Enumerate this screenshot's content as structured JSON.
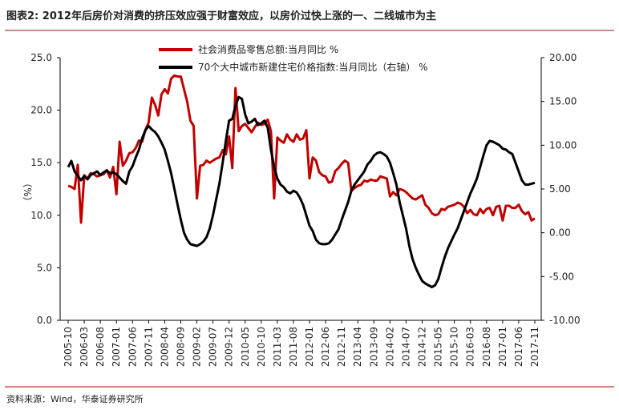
{
  "chart_data": {
    "type": "line",
    "title": "图表2: 2012年后房价对消费的挤压效应强于财富效应，以房价过快上涨的一、二线城市为主",
    "source": "资料来源：Wind，华泰证券研究所",
    "y_label": "（%）",
    "categories": [
      "2005-10",
      null,
      null,
      null,
      null,
      "2006-03",
      null,
      null,
      null,
      null,
      "2006-08",
      null,
      null,
      null,
      null,
      "2007-01",
      null,
      null,
      null,
      null,
      "2007-06",
      null,
      null,
      null,
      null,
      "2007-11",
      null,
      null,
      null,
      null,
      "2008-04",
      null,
      null,
      null,
      null,
      "2008-09",
      null,
      null,
      null,
      null,
      "2009-02",
      null,
      null,
      null,
      null,
      "2009-07",
      null,
      null,
      null,
      null,
      "2009-12",
      null,
      null,
      null,
      null,
      "2010-05",
      null,
      null,
      null,
      null,
      "2010-10",
      null,
      null,
      null,
      null,
      "2011-03",
      null,
      null,
      null,
      null,
      "2011-08",
      null,
      null,
      null,
      null,
      "2012-01",
      null,
      null,
      null,
      null,
      "2012-06",
      null,
      null,
      null,
      null,
      "2012-11",
      null,
      null,
      null,
      null,
      "2013-04",
      null,
      null,
      null,
      null,
      "2013-09",
      null,
      null,
      null,
      null,
      "2014-02",
      null,
      null,
      null,
      null,
      "2014-07",
      null,
      null,
      null,
      null,
      "2014-12",
      null,
      null,
      null,
      null,
      "2015-05",
      null,
      null,
      null,
      null,
      "2015-10",
      null,
      null,
      null,
      null,
      "2016-03",
      null,
      null,
      null,
      null,
      "2016-08",
      null,
      null,
      null,
      null,
      "2017-01",
      null,
      null,
      null,
      null,
      "2017-06",
      null,
      null,
      null,
      null,
      "2017-11"
    ],
    "series": [
      {
        "name": "社会消费品零售总额:当月同比  %",
        "color": "#c00000",
        "axis": "y",
        "values": [
          12.8,
          12.7,
          12.5,
          14.8,
          9.3,
          13.8,
          13.5,
          14.0,
          13.9,
          13.7,
          13.8,
          13.9,
          14.3,
          13.6,
          14.6,
          12.0,
          17.0,
          14.7,
          15.2,
          15.9,
          16.0,
          16.4,
          17.1,
          17.0,
          18.1,
          18.8,
          21.2,
          20.5,
          19.5,
          21.5,
          22.0,
          21.6,
          23.0,
          23.3,
          23.2,
          23.2,
          22.0,
          20.8,
          19.0,
          18.5,
          11.6,
          14.7,
          14.8,
          15.2,
          15.0,
          15.2,
          15.4,
          15.5,
          16.2,
          15.8,
          17.5,
          14.5,
          22.1,
          18.0,
          18.5,
          18.7,
          18.3,
          17.9,
          18.4,
          18.8,
          18.6,
          18.7,
          19.1,
          18.0,
          11.6,
          17.4,
          17.1,
          16.9,
          17.7,
          17.2,
          17.0,
          17.7,
          17.2,
          17.3,
          18.1,
          13.5,
          15.5,
          15.2,
          14.1,
          13.8,
          13.7,
          13.1,
          13.2,
          14.2,
          14.5,
          14.9,
          15.2,
          15.0,
          12.3,
          12.6,
          12.8,
          12.9,
          13.3,
          13.2,
          13.4,
          13.3,
          13.3,
          13.7,
          13.6,
          13.5,
          11.8,
          12.2,
          11.9,
          12.5,
          12.4,
          12.2,
          11.9,
          11.6,
          11.5,
          11.7,
          11.9,
          11.0,
          10.7,
          10.2,
          10.0,
          10.1,
          10.6,
          10.5,
          10.8,
          10.9,
          11.0,
          11.2,
          11.1,
          10.8,
          10.2,
          10.5,
          10.1,
          10.0,
          10.6,
          10.2,
          10.6,
          10.7,
          10.0,
          10.8,
          10.9,
          9.5,
          10.9,
          10.9,
          10.7,
          10.7,
          11.0,
          10.4,
          10.1,
          10.3,
          9.5,
          9.7
        ]
      },
      {
        "name": "70个大中城市新建住宅价格指数:当月同比（右轴）  %",
        "color": "#000000",
        "axis": "y2",
        "values": [
          7.5,
          8.2,
          7.0,
          6.5,
          6.0,
          6.5,
          6.1,
          6.6,
          6.8,
          7.0,
          6.6,
          6.9,
          7.1,
          6.8,
          6.9,
          6.7,
          6.3,
          5.9,
          5.6,
          7.0,
          7.6,
          8.6,
          9.5,
          10.8,
          11.7,
          12.2,
          11.8,
          11.5,
          11.0,
          10.3,
          9.5,
          8.2,
          6.8,
          5.0,
          3.2,
          1.5,
          0.0,
          -0.8,
          -1.3,
          -1.4,
          -1.5,
          -1.3,
          -1.0,
          -0.5,
          0.5,
          2.0,
          3.8,
          5.6,
          8.0,
          10.5,
          12.8,
          13.0,
          14.5,
          15.5,
          15.3,
          13.5,
          12.5,
          12.7,
          13.0,
          12.3,
          12.5,
          12.8,
          12.0,
          9.5,
          7.5,
          6.2,
          5.5,
          5.2,
          4.7,
          4.5,
          4.8,
          4.6,
          4.0,
          3.2,
          2.0,
          0.8,
          0.2,
          -0.8,
          -1.2,
          -1.3,
          -1.3,
          -1.2,
          -0.8,
          -0.2,
          0.4,
          1.5,
          2.5,
          3.5,
          4.8,
          5.5,
          6.0,
          6.5,
          7.0,
          7.8,
          8.2,
          8.8,
          9.1,
          9.2,
          9.0,
          8.7,
          8.0,
          6.8,
          5.5,
          3.5,
          2.0,
          0.5,
          -1.5,
          -3.0,
          -4.0,
          -4.8,
          -5.5,
          -5.8,
          -6.0,
          -6.2,
          -6.0,
          -5.3,
          -4.0,
          -2.8,
          -1.8,
          -1.0,
          -0.2,
          0.5,
          1.5,
          2.5,
          3.5,
          4.5,
          5.3,
          6.2,
          7.5,
          8.8,
          10.0,
          10.5,
          10.4,
          10.2,
          10.0,
          9.6,
          9.5,
          9.2,
          9.0,
          8.0,
          7.0,
          6.0,
          5.5,
          5.5,
          5.6,
          5.7
        ]
      }
    ],
    "ylim": [
      0,
      25
    ],
    "yticks": [
      {
        "value": 0,
        "label": "0.0"
      },
      {
        "value": 5,
        "label": "5.0"
      },
      {
        "value": 10,
        "label": "10.0"
      },
      {
        "value": 15,
        "label": "15.0"
      },
      {
        "value": 20,
        "label": "20.0"
      },
      {
        "value": 25,
        "label": "25.0"
      }
    ],
    "y2lim": [
      -10,
      20
    ],
    "y2ticks": [
      {
        "value": -10,
        "label": "-10.00"
      },
      {
        "value": -5,
        "label": "-5.00"
      },
      {
        "value": 0,
        "label": "0.00"
      },
      {
        "value": 5,
        "label": "5.00"
      },
      {
        "value": 10,
        "label": "10.00"
      },
      {
        "value": 15,
        "label": "15.00"
      },
      {
        "value": 20,
        "label": "20.00"
      }
    ],
    "grid": false
  }
}
